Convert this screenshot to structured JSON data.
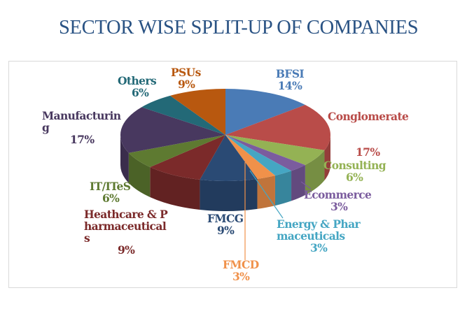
{
  "slide": {
    "title": "SECTOR WISE SPLIT-UP OF COMPANIES"
  },
  "chart_data": {
    "type": "pie",
    "style": "3d",
    "title": "SECTOR WISE SPLIT-UP OF COMPANIES",
    "start": "12 o'clock, clockwise",
    "slices": [
      {
        "label": "BFSI",
        "value": 14,
        "pct": "14%",
        "color": "#4a7bb6"
      },
      {
        "label": "Conglomerate",
        "value": 17,
        "pct": "17%",
        "color": "#b94c49"
      },
      {
        "label": "Consulting",
        "value": 6,
        "pct": "6%",
        "color": "#94b254"
      },
      {
        "label": "Ecommerce",
        "value": 3,
        "pct": "3%",
        "color": "#7b5c9e"
      },
      {
        "label": "Energy & Pharmaceuticals",
        "value": 3,
        "pct": "3%",
        "color": "#45a6c3"
      },
      {
        "label": "FMCD",
        "value": 3,
        "pct": "3%",
        "color": "#f0914a"
      },
      {
        "label": "FMCG",
        "value": 9,
        "pct": "9%",
        "color": "#2a4a74"
      },
      {
        "label": "Heathcare & Pharmaceuticals",
        "value": 9,
        "pct": "9%",
        "color": "#7b2a2a"
      },
      {
        "label": "IT/ITeS",
        "value": 6,
        "pct": "6%",
        "color": "#5e7a31"
      },
      {
        "label": "Manufacturing",
        "value": 17,
        "pct": "17%",
        "color": "#48385f"
      },
      {
        "label": "Others",
        "value": 6,
        "pct": "6%",
        "color": "#236977"
      },
      {
        "label": "PSUs",
        "value": 9,
        "pct": "9%",
        "color": "#b8580f"
      }
    ]
  }
}
